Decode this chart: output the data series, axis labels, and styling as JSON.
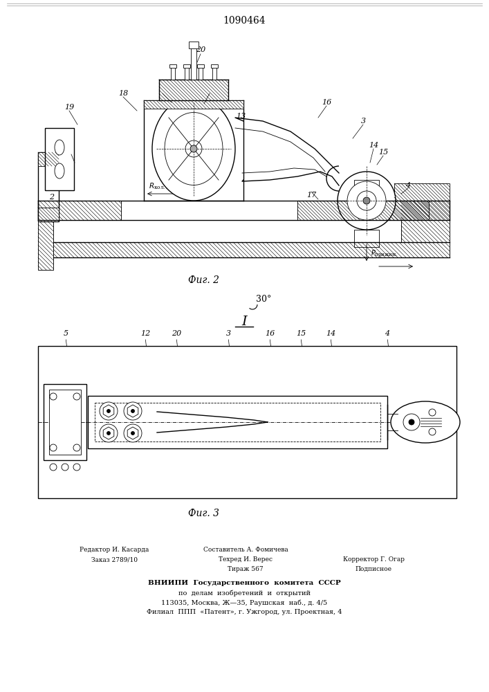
{
  "title_number": "1090464",
  "fig2_label": "Фиг. 2",
  "fig3_label": "Фиг. 3",
  "angle_label": "30°",
  "arrow_label": "I",
  "footer_line1_left": "Редактор И. Касарда",
  "footer_line2_left": "Заказ 2789/10",
  "footer_line1_center": "Составитель А. Фомичева",
  "footer_line2_center": "Техред И. Верес",
  "footer_line3_center": "Тираж 567",
  "footer_line2_right": "Корректор Г. Огар",
  "footer_line3_right": "Подписное",
  "footer_vnipi1": "ВНИИПИ  Государственного  комитета  СССР",
  "footer_vnipi2": "по  делам  изобретений  и  открытий",
  "footer_vnipi3": "113035, Москва, Ж—35, Раушская  наб., д. 4/5",
  "footer_vnipi4": "Филиал  ППП  «Патент», г. Ужгород, ул. Проектная, 4",
  "bg_color": "#ffffff",
  "line_color": "#000000"
}
